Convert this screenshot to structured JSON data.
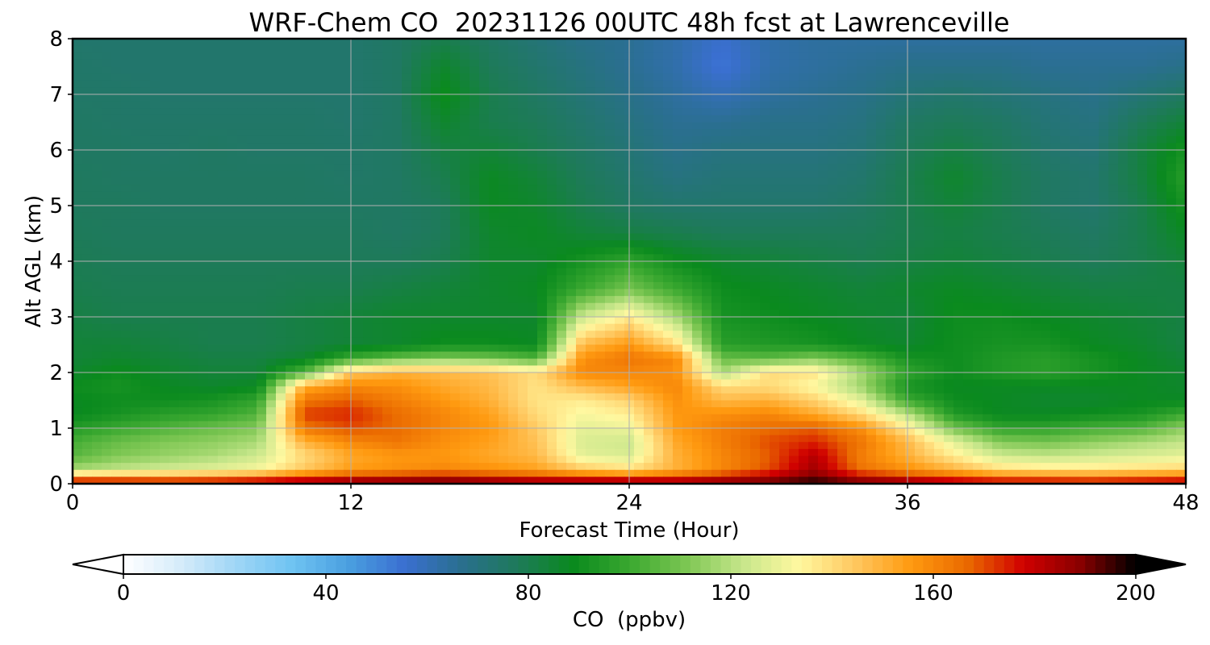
{
  "chart_data": {
    "type": "heatmap",
    "title": "WRF-Chem CO  20231126 00UTC 48h fcst at Lawrenceville",
    "xlabel": "Forecast Time (Hour)",
    "ylabel": "Alt AGL (km)",
    "xlim": [
      0,
      48
    ],
    "ylim": [
      0,
      8
    ],
    "x_ticks": [
      0,
      12,
      24,
      36,
      48
    ],
    "y_ticks": [
      0,
      1,
      2,
      3,
      4,
      5,
      6,
      7,
      8
    ],
    "grid": true,
    "colorbar": {
      "label": "CO  (ppbv)",
      "range": [
        0,
        200
      ],
      "ticks": [
        0,
        40,
        80,
        120,
        160,
        200
      ],
      "extend": "both",
      "colors": [
        "#ffffff",
        "#d6ecfa",
        "#9fd6f6",
        "#6fc3f2",
        "#4a9fe0",
        "#3a6fd0",
        "#2a6f8f",
        "#1e7a5a",
        "#0a8a1e",
        "#3aa830",
        "#7cc652",
        "#c6e68a",
        "#fff8a0",
        "#ffc860",
        "#ff9a10",
        "#ea6a00",
        "#d00000",
        "#8a0000",
        "#000000"
      ]
    },
    "x": [
      0,
      2,
      4,
      6,
      8,
      10,
      12,
      14,
      16,
      18,
      20,
      22,
      24,
      26,
      28,
      30,
      32,
      34,
      36,
      38,
      40,
      42,
      44,
      46,
      48
    ],
    "y": [
      0,
      0.25,
      0.5,
      0.75,
      1,
      1.25,
      1.5,
      1.75,
      2,
      2.25,
      2.5,
      3,
      3.5,
      4,
      4.5,
      5,
      5.5,
      6,
      6.5,
      7,
      7.5,
      8
    ],
    "z": [
      [
        188,
        186,
        184,
        185,
        188,
        190,
        192,
        194,
        196,
        192,
        190,
        192,
        193,
        190,
        192,
        195,
        198,
        194,
        190,
        186,
        184,
        184,
        182,
        184,
        186
      ],
      [
        118,
        122,
        125,
        128,
        132,
        145,
        155,
        158,
        160,
        158,
        154,
        145,
        140,
        150,
        160,
        170,
        185,
        165,
        158,
        150,
        140,
        138,
        138,
        140,
        142
      ],
      [
        105,
        112,
        115,
        118,
        124,
        140,
        152,
        156,
        156,
        152,
        148,
        128,
        126,
        150,
        160,
        168,
        182,
        162,
        150,
        136,
        124,
        122,
        124,
        126,
        128
      ],
      [
        102,
        108,
        112,
        114,
        118,
        150,
        160,
        164,
        158,
        154,
        146,
        126,
        124,
        152,
        162,
        170,
        174,
        164,
        148,
        128,
        112,
        110,
        114,
        118,
        122
      ],
      [
        95,
        100,
        104,
        108,
        112,
        164,
        170,
        166,
        160,
        156,
        144,
        128,
        130,
        155,
        162,
        166,
        168,
        158,
        136,
        110,
        98,
        98,
        102,
        104,
        114
      ],
      [
        88,
        92,
        96,
        98,
        104,
        172,
        174,
        166,
        160,
        154,
        140,
        132,
        136,
        156,
        158,
        160,
        152,
        140,
        120,
        94,
        88,
        88,
        90,
        92,
        100
      ],
      [
        88,
        90,
        90,
        92,
        98,
        164,
        168,
        162,
        156,
        150,
        138,
        136,
        142,
        158,
        148,
        150,
        142,
        128,
        100,
        90,
        88,
        86,
        86,
        88,
        88
      ],
      [
        90,
        92,
        88,
        86,
        88,
        152,
        160,
        158,
        152,
        148,
        138,
        148,
        154,
        160,
        140,
        140,
        132,
        116,
        92,
        88,
        88,
        88,
        88,
        88,
        86
      ],
      [
        86,
        90,
        86,
        84,
        84,
        104,
        145,
        150,
        148,
        146,
        140,
        160,
        160,
        158,
        118,
        140,
        138,
        118,
        98,
        90,
        94,
        96,
        92,
        88,
        86
      ],
      [
        84,
        86,
        84,
        82,
        82,
        86,
        100,
        108,
        112,
        110,
        104,
        158,
        164,
        160,
        108,
        106,
        112,
        104,
        92,
        90,
        94,
        96,
        92,
        88,
        84
      ],
      [
        84,
        84,
        82,
        80,
        80,
        82,
        84,
        86,
        90,
        90,
        88,
        148,
        156,
        140,
        96,
        94,
        92,
        88,
        86,
        90,
        92,
        92,
        88,
        86,
        82
      ],
      [
        82,
        80,
        80,
        80,
        80,
        82,
        84,
        86,
        86,
        86,
        86,
        124,
        136,
        118,
        92,
        90,
        88,
        86,
        84,
        90,
        90,
        88,
        86,
        84,
        82
      ],
      [
        80,
        79,
        79,
        79,
        79,
        80,
        80,
        82,
        84,
        86,
        88,
        100,
        110,
        100,
        90,
        88,
        86,
        84,
        86,
        88,
        86,
        84,
        82,
        82,
        82
      ],
      [
        79,
        78,
        78,
        78,
        78,
        78,
        78,
        78,
        80,
        86,
        86,
        92,
        98,
        90,
        86,
        84,
        82,
        80,
        82,
        84,
        82,
        80,
        78,
        80,
        84
      ],
      [
        78,
        77,
        77,
        77,
        77,
        77,
        77,
        76,
        78,
        86,
        88,
        84,
        82,
        80,
        78,
        78,
        78,
        78,
        80,
        82,
        80,
        78,
        76,
        80,
        88
      ],
      [
        77,
        77,
        76,
        76,
        76,
        76,
        76,
        76,
        78,
        88,
        86,
        80,
        76,
        74,
        74,
        74,
        74,
        76,
        80,
        84,
        80,
        76,
        74,
        80,
        92
      ],
      [
        77,
        76,
        76,
        76,
        76,
        76,
        75,
        76,
        80,
        88,
        84,
        78,
        74,
        70,
        72,
        72,
        72,
        74,
        80,
        86,
        80,
        76,
        74,
        82,
        96
      ],
      [
        76,
        76,
        75,
        76,
        75,
        75,
        75,
        76,
        82,
        84,
        80,
        76,
        72,
        68,
        70,
        70,
        70,
        72,
        78,
        82,
        78,
        74,
        72,
        82,
        92
      ],
      [
        76,
        75,
        75,
        75,
        75,
        75,
        74,
        76,
        86,
        80,
        78,
        74,
        70,
        66,
        66,
        68,
        68,
        70,
        76,
        78,
        76,
        72,
        70,
        78,
        84
      ],
      [
        75,
        75,
        74,
        74,
        74,
        74,
        74,
        76,
        90,
        80,
        76,
        72,
        68,
        64,
        60,
        64,
        66,
        68,
        72,
        74,
        72,
        70,
        68,
        72,
        76
      ],
      [
        75,
        74,
        74,
        74,
        74,
        74,
        74,
        76,
        86,
        78,
        74,
        70,
        66,
        62,
        54,
        62,
        64,
        66,
        68,
        68,
        68,
        66,
        66,
        66,
        68
      ],
      [
        74,
        74,
        74,
        74,
        74,
        74,
        74,
        76,
        80,
        76,
        72,
        68,
        66,
        62,
        56,
        62,
        64,
        64,
        64,
        64,
        64,
        64,
        64,
        64,
        64
      ]
    ]
  }
}
